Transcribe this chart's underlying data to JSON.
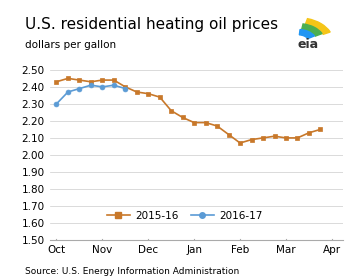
{
  "title": "U.S. residential heating oil prices",
  "ylabel": "dollars per gallon",
  "source": "Source: U.S. Energy Information Administration",
  "ylim": [
    1.5,
    2.55
  ],
  "yticks": [
    1.5,
    1.6,
    1.7,
    1.8,
    1.9,
    2.0,
    2.1,
    2.2,
    2.3,
    2.4,
    2.5
  ],
  "xtick_labels": [
    "Oct",
    "Nov",
    "Dec",
    "Jan",
    "Feb",
    "Mar",
    "Apr"
  ],
  "xtick_positions": [
    0,
    2,
    4,
    6,
    8,
    10,
    12
  ],
  "xlim": [
    -0.3,
    12.5
  ],
  "series_2015_16": {
    "label": "2015-16",
    "color": "#c8782a",
    "marker": "s",
    "x": [
      0,
      0.5,
      1.0,
      1.5,
      2.0,
      2.5,
      3.0,
      3.5,
      4.0,
      4.5,
      5.0,
      5.5,
      6.0,
      6.5,
      7.0,
      7.5,
      8.0,
      8.5,
      9.0,
      9.5,
      10.0,
      10.5,
      11.0,
      11.5
    ],
    "y": [
      2.43,
      2.45,
      2.44,
      2.43,
      2.44,
      2.44,
      2.4,
      2.37,
      2.36,
      2.34,
      2.26,
      2.22,
      2.19,
      2.19,
      2.17,
      2.12,
      2.07,
      2.09,
      2.1,
      2.11,
      2.1,
      2.1,
      2.13,
      2.15
    ]
  },
  "series_2016_17": {
    "label": "2016-17",
    "color": "#5b9bd5",
    "marker": "o",
    "x": [
      0,
      0.5,
      1.0,
      1.5,
      2.0,
      2.5,
      3.0
    ],
    "y": [
      2.3,
      2.37,
      2.39,
      2.41,
      2.4,
      2.41,
      2.39
    ]
  },
  "title_fontsize": 11,
  "label_fontsize": 7.5,
  "tick_fontsize": 7.5,
  "source_fontsize": 6.5,
  "legend_fontsize": 7.5,
  "markersize": 3.5,
  "linewidth": 1.2,
  "grid_color": "#cccccc",
  "bottom_spine_color": "#aaaaaa"
}
